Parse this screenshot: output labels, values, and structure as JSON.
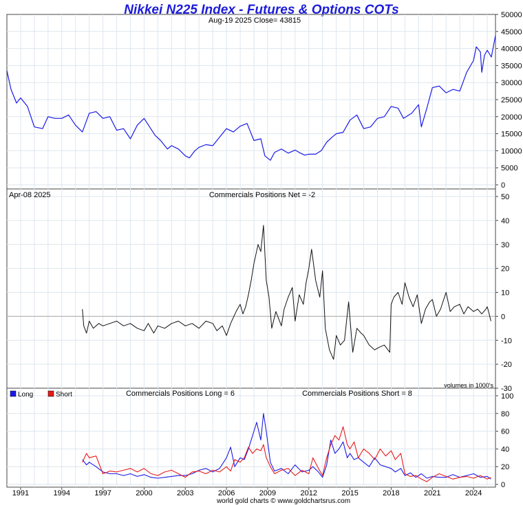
{
  "header": {
    "title": "Nikkei N225 Index - Futures & Options COTs",
    "subtitle": "Aug-19  2025   Close= 43815",
    "footer": "world gold charts © www.goldchartsrus.com"
  },
  "colors": {
    "title": "#1c1cd9",
    "price_line": "#1a1ae6",
    "net_line": "#111111",
    "long_line": "#1a1ae6",
    "short_line": "#e61a1a",
    "grid": "#dde6ee",
    "frame": "#444444",
    "zero_line": "#aaaaaa"
  },
  "chart_data": [
    {
      "type": "line",
      "panel": "price",
      "subtitle": "Aug-19  2025   Close= 43815",
      "ylim": [
        0,
        50000
      ],
      "yticks": [
        0,
        5000,
        10000,
        15000,
        20000,
        25000,
        30000,
        35000,
        40000,
        45000,
        50000
      ],
      "grid": true,
      "series": [
        {
          "x": [
            1990.0,
            1990.3,
            1990.7,
            1991.0,
            1991.5,
            1992.0,
            1992.6,
            1993.0,
            1993.5,
            1994.0,
            1994.5,
            1995.0,
            1995.5,
            1996.0,
            1996.5,
            1997.0,
            1997.5,
            1998.0,
            1998.5,
            1999.0,
            1999.5,
            2000.0,
            2000.4,
            2000.8,
            2001.2,
            2001.7,
            2002.0,
            2002.5,
            2003.0,
            2003.3,
            2003.7,
            2004.0,
            2004.5,
            2005.0,
            2005.5,
            2006.0,
            2006.5,
            2007.0,
            2007.5,
            2008.0,
            2008.5,
            2008.8,
            2009.2,
            2009.5,
            2010.0,
            2010.5,
            2011.0,
            2011.3,
            2011.7,
            2012.0,
            2012.5,
            2012.9,
            2013.3,
            2013.7,
            2014.0,
            2014.5,
            2015.0,
            2015.5,
            2016.0,
            2016.5,
            2017.0,
            2017.5,
            2018.0,
            2018.5,
            2018.9,
            2019.5,
            2020.0,
            2020.2,
            2020.6,
            2021.0,
            2021.5,
            2022.0,
            2022.5,
            2023.0,
            2023.5,
            2024.0,
            2024.2,
            2024.5,
            2024.6,
            2024.8,
            2025.0,
            2025.3,
            2025.6
          ],
          "y": [
            33500,
            28000,
            24000,
            25500,
            23000,
            17000,
            16500,
            20000,
            19500,
            19500,
            20500,
            17500,
            15500,
            21000,
            21500,
            19500,
            20000,
            16000,
            16500,
            13500,
            17500,
            19500,
            17000,
            14500,
            13000,
            10500,
            11500,
            10500,
            8500,
            7900,
            10000,
            11000,
            11800,
            11500,
            14000,
            16500,
            15500,
            17200,
            18000,
            13000,
            13500,
            8500,
            7200,
            9500,
            10500,
            9300,
            10200,
            9500,
            8700,
            9000,
            9000,
            10000,
            12500,
            14000,
            15000,
            15400,
            19000,
            20500,
            16500,
            17000,
            19500,
            20000,
            23000,
            22500,
            19500,
            21000,
            23500,
            17000,
            22500,
            28500,
            29000,
            27000,
            28000,
            27500,
            33000,
            36500,
            40500,
            39000,
            33000,
            38000,
            39500,
            37500,
            43815
          ]
        }
      ]
    },
    {
      "type": "line",
      "panel": "net",
      "date_label": "Apr-08  2025",
      "title": "Commercials Positions Net = -2",
      "note": "volumes in 1000's",
      "ylim": [
        -30,
        50
      ],
      "yticks": [
        -30,
        -20,
        -10,
        0,
        10,
        20,
        30,
        40,
        50
      ],
      "grid": true,
      "series": [
        {
          "x": [
            1995.5,
            1995.6,
            1995.8,
            1996.0,
            1996.3,
            1996.7,
            1997.0,
            1997.5,
            1998.0,
            1998.5,
            1999.0,
            1999.5,
            2000.0,
            2000.3,
            2000.7,
            2001.0,
            2001.5,
            2002.0,
            2002.5,
            2003.0,
            2003.5,
            2004.0,
            2004.5,
            2005.0,
            2005.3,
            2005.7,
            2006.0,
            2006.3,
            2006.7,
            2007.0,
            2007.2,
            2007.4,
            2007.6,
            2007.8,
            2008.0,
            2008.3,
            2008.5,
            2008.7,
            2008.9,
            2009.1,
            2009.3,
            2009.6,
            2010.0,
            2010.2,
            2010.5,
            2010.8,
            2011.0,
            2011.3,
            2011.6,
            2011.8,
            2012.0,
            2012.2,
            2012.5,
            2012.8,
            2013.0,
            2013.2,
            2013.5,
            2013.8,
            2014.0,
            2014.3,
            2014.6,
            2014.9,
            2015.2,
            2015.5,
            2015.8,
            2016.0,
            2016.4,
            2016.8,
            2017.1,
            2017.5,
            2017.9,
            2018.0,
            2018.2,
            2018.5,
            2018.8,
            2019.0,
            2019.3,
            2019.6,
            2019.9,
            2020.2,
            2020.5,
            2020.8,
            2021.0,
            2021.3,
            2021.6,
            2022.0,
            2022.3,
            2022.6,
            2023.0,
            2023.3,
            2023.6,
            2024.0,
            2024.3,
            2024.6,
            2024.9,
            2025.0,
            2025.1,
            2025.27
          ],
          "y": [
            3,
            -4,
            -7,
            -2,
            -5,
            -3,
            -4,
            -3,
            -2,
            -4,
            -3,
            -5,
            -6,
            -3,
            -7,
            -4,
            -5,
            -3,
            -2,
            -4,
            -3,
            -5,
            -2,
            -3,
            -6,
            -4,
            -8,
            -3,
            2,
            5,
            1,
            4,
            9,
            15,
            22,
            30,
            27,
            38,
            15,
            8,
            -5,
            2,
            -4,
            3,
            8,
            12,
            -2,
            9,
            5,
            14,
            20,
            28,
            15,
            8,
            19,
            -5,
            -14,
            -18,
            -8,
            -12,
            -10,
            6,
            -15,
            -5,
            -7,
            -8,
            -12,
            -14,
            -13,
            -12,
            -15,
            5,
            8,
            10,
            5,
            14,
            8,
            4,
            9,
            -3,
            3,
            6,
            7,
            0,
            3,
            10,
            2,
            4,
            5,
            1,
            4,
            2,
            3,
            1,
            3,
            4,
            2,
            -2
          ]
        }
      ]
    },
    {
      "type": "line",
      "panel": "long-short",
      "legend": [
        "Long",
        "Short"
      ],
      "legend_placement": "top-left",
      "title_long": "Commercials Positions Long = 6",
      "title_short": "Commercials Positions Short = 8",
      "ylim": [
        0,
        100
      ],
      "yticks": [
        0,
        20,
        40,
        60,
        80,
        100
      ],
      "grid": true,
      "x": [
        1995.5,
        1995.8,
        1996.0,
        1996.5,
        1997.0,
        1997.5,
        1998.0,
        1998.5,
        1999.0,
        1999.5,
        2000.0,
        2000.5,
        2001.0,
        2001.5,
        2002.0,
        2002.5,
        2003.0,
        2003.5,
        2004.0,
        2004.5,
        2005.0,
        2005.5,
        2006.0,
        2006.3,
        2006.6,
        2007.0,
        2007.3,
        2007.6,
        2007.9,
        2008.2,
        2008.5,
        2008.7,
        2008.9,
        2009.2,
        2009.5,
        2010.0,
        2010.5,
        2011.0,
        2011.5,
        2012.0,
        2012.3,
        2012.7,
        2013.0,
        2013.3,
        2013.6,
        2013.9,
        2014.2,
        2014.5,
        2014.8,
        2015.0,
        2015.3,
        2015.6,
        2016.0,
        2016.4,
        2016.8,
        2017.2,
        2017.6,
        2018.0,
        2018.3,
        2018.7,
        2019.0,
        2019.4,
        2019.8,
        2020.2,
        2020.6,
        2021.0,
        2021.5,
        2022.0,
        2022.5,
        2023.0,
        2023.5,
        2024.0,
        2024.5,
        2025.0,
        2025.27
      ],
      "series": [
        {
          "name": "Long",
          "values": [
            28,
            22,
            25,
            20,
            14,
            12,
            12,
            10,
            12,
            9,
            11,
            8,
            7,
            8,
            9,
            10,
            10,
            12,
            16,
            18,
            14,
            18,
            30,
            42,
            20,
            30,
            28,
            40,
            55,
            70,
            50,
            80,
            60,
            25,
            15,
            18,
            12,
            22,
            14,
            16,
            20,
            14,
            8,
            22,
            50,
            35,
            40,
            48,
            30,
            35,
            28,
            30,
            25,
            20,
            30,
            22,
            20,
            18,
            14,
            18,
            10,
            13,
            8,
            12,
            7,
            9,
            8,
            8,
            11,
            8,
            10,
            12,
            8,
            9,
            6
          ]
        },
        {
          "name": "Short",
          "values": [
            25,
            35,
            30,
            32,
            12,
            15,
            14,
            16,
            18,
            14,
            18,
            12,
            10,
            14,
            16,
            12,
            8,
            14,
            15,
            12,
            16,
            14,
            20,
            15,
            28,
            25,
            30,
            42,
            35,
            40,
            38,
            45,
            30,
            20,
            12,
            16,
            18,
            10,
            16,
            12,
            30,
            18,
            10,
            30,
            45,
            55,
            50,
            65,
            45,
            40,
            48,
            30,
            40,
            35,
            28,
            40,
            32,
            38,
            28,
            35,
            12,
            9,
            10,
            6,
            3,
            8,
            12,
            9,
            6,
            8,
            9,
            7,
            10,
            6,
            8
          ]
        }
      ]
    }
  ],
  "x_axis": {
    "labels": [
      "1991",
      "1994",
      "1997",
      "2000",
      "2003",
      "2006",
      "2009",
      "2012",
      "2015",
      "2018",
      "2021",
      "2024"
    ],
    "label_years": [
      1991,
      1994,
      1997,
      2000,
      2003,
      2006,
      2009,
      2012,
      2015,
      2018,
      2021,
      2024
    ],
    "xlim": [
      1990.0,
      2025.6
    ]
  }
}
